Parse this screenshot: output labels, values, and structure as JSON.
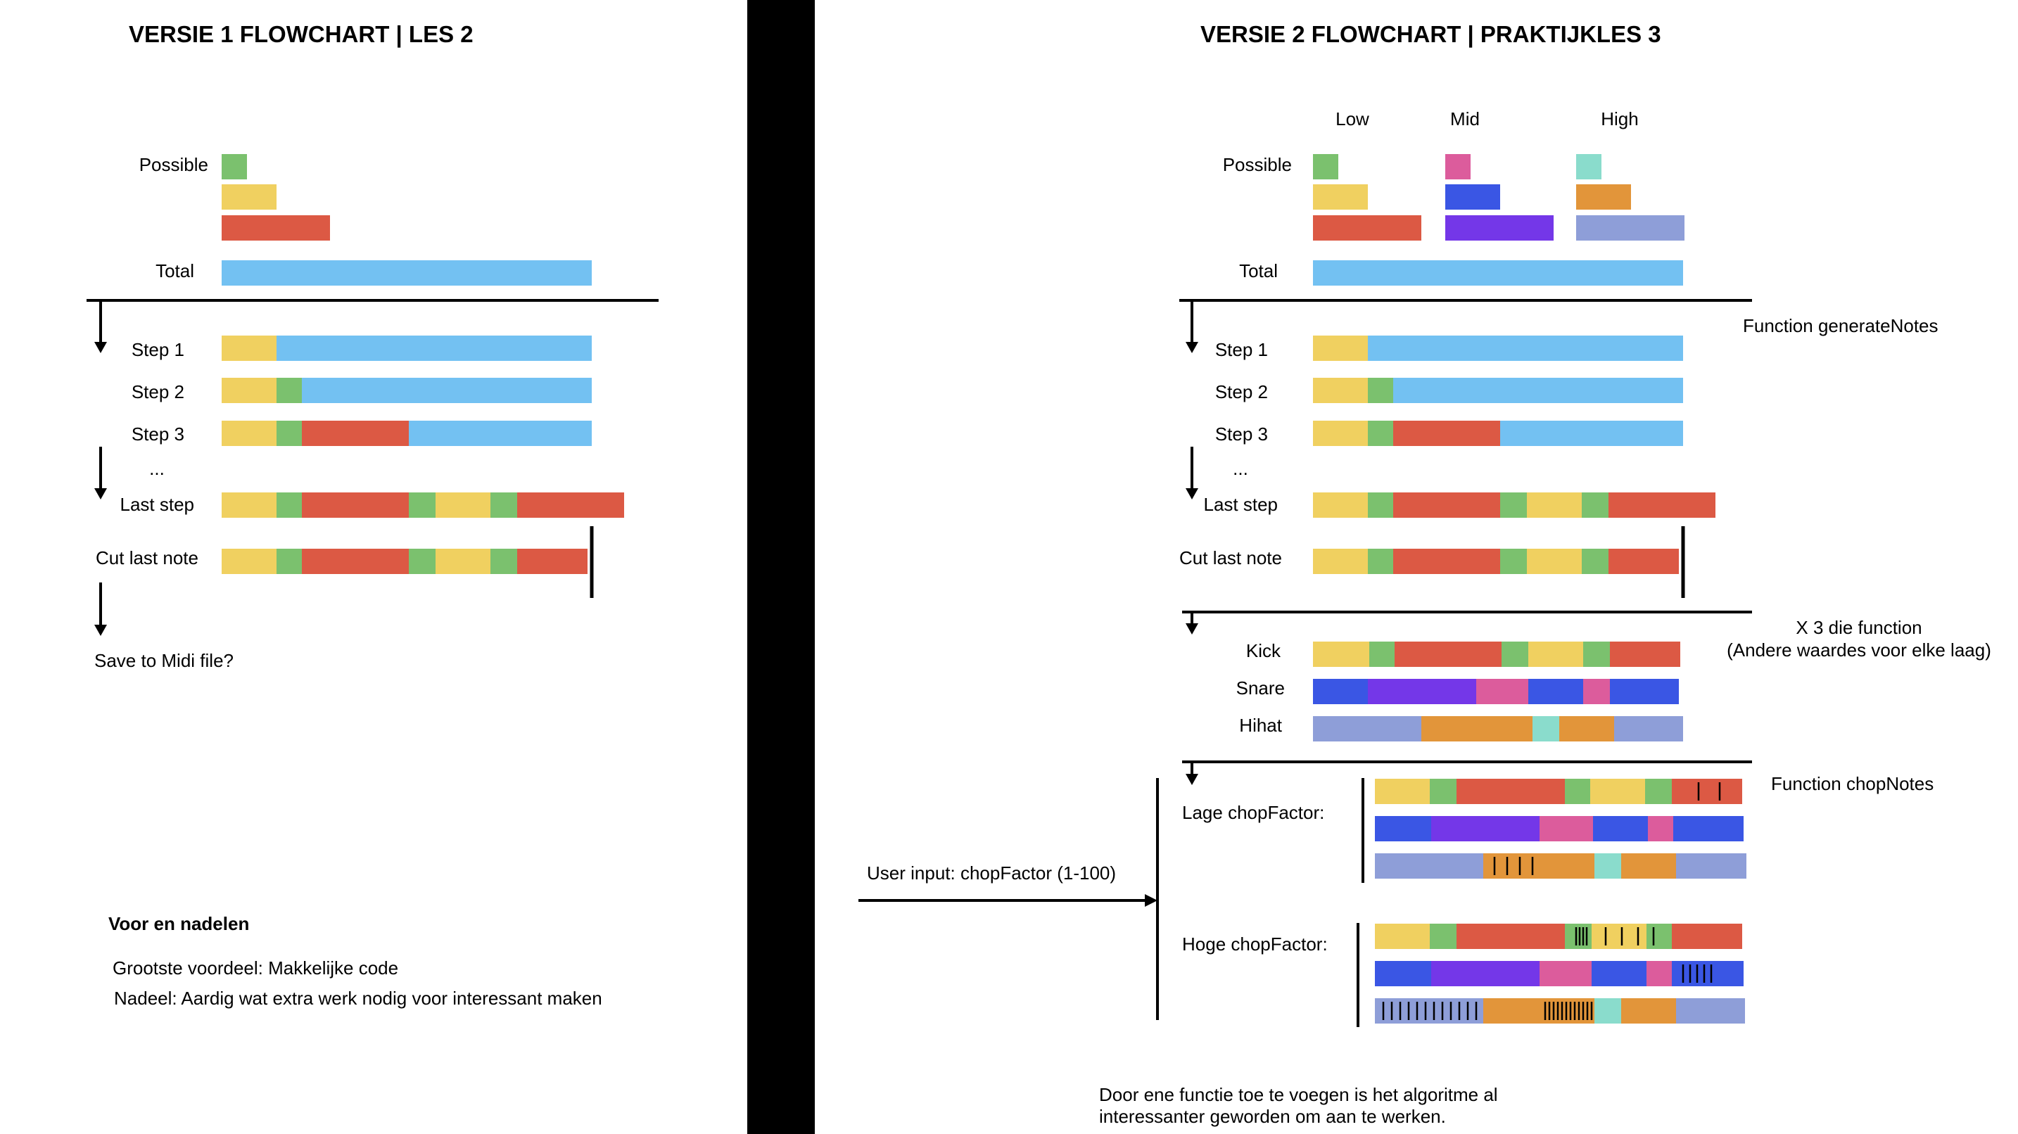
{
  "colors": {
    "green": "#7bc16e",
    "yellow": "#f0d060",
    "red": "#dc5944",
    "blue": "#73c1f2",
    "pink": "#dc5c9c",
    "royal": "#3a56e4",
    "purple": "#7437e8",
    "teal": "#8adccc",
    "orange": "#e2953a",
    "lavender": "#8e9ed8",
    "divider": "#000000"
  },
  "left": {
    "title": "VERSIE 1 FLOWCHART | LES 2",
    "possible_label": "Possible",
    "total_label": "Total",
    "steps": {
      "step1": "Step 1",
      "step2": "Step 2",
      "step3": "Step 3",
      "ellipsis": "...",
      "last": "Last step",
      "cut": "Cut last note"
    },
    "save_label": "Save to Midi file?",
    "pros_cons": {
      "heading": "Voor en nadelen",
      "advantage": "Grootste voordeel: Makkelijke code",
      "disadvantage": "Nadeel:  Aardig wat extra werk nodig voor interessant maken"
    }
  },
  "right": {
    "title": "VERSIE 2 FLOWCHART | PRAKTIJKLES 3",
    "columns": {
      "low": "Low",
      "mid": "Mid",
      "high": "High"
    },
    "possible_label": "Possible",
    "total_label": "Total",
    "steps": {
      "step1": "Step 1",
      "step2": "Step 2",
      "step3": "Step 3",
      "ellipsis": "...",
      "last": "Last step",
      "cut": "Cut last note"
    },
    "function_generate": "Function generateNotes",
    "times_three": {
      "line1": "X 3 die function",
      "line2": "(Andere waardes voor elke laag)"
    },
    "layers": {
      "kick": "Kick",
      "snare": "Snare",
      "hihat": "Hihat"
    },
    "function_chop": "Function chopNotes",
    "lage_chop": "Lage chopFactor:",
    "hoge_chop": "Hoge chopFactor:",
    "user_input": "User input: chopFactor (1-100)",
    "conclusion": {
      "line1": "Door ene functie toe te voegen is het algoritme al",
      "line2": "interessanter geworden om aan te werken."
    }
  }
}
